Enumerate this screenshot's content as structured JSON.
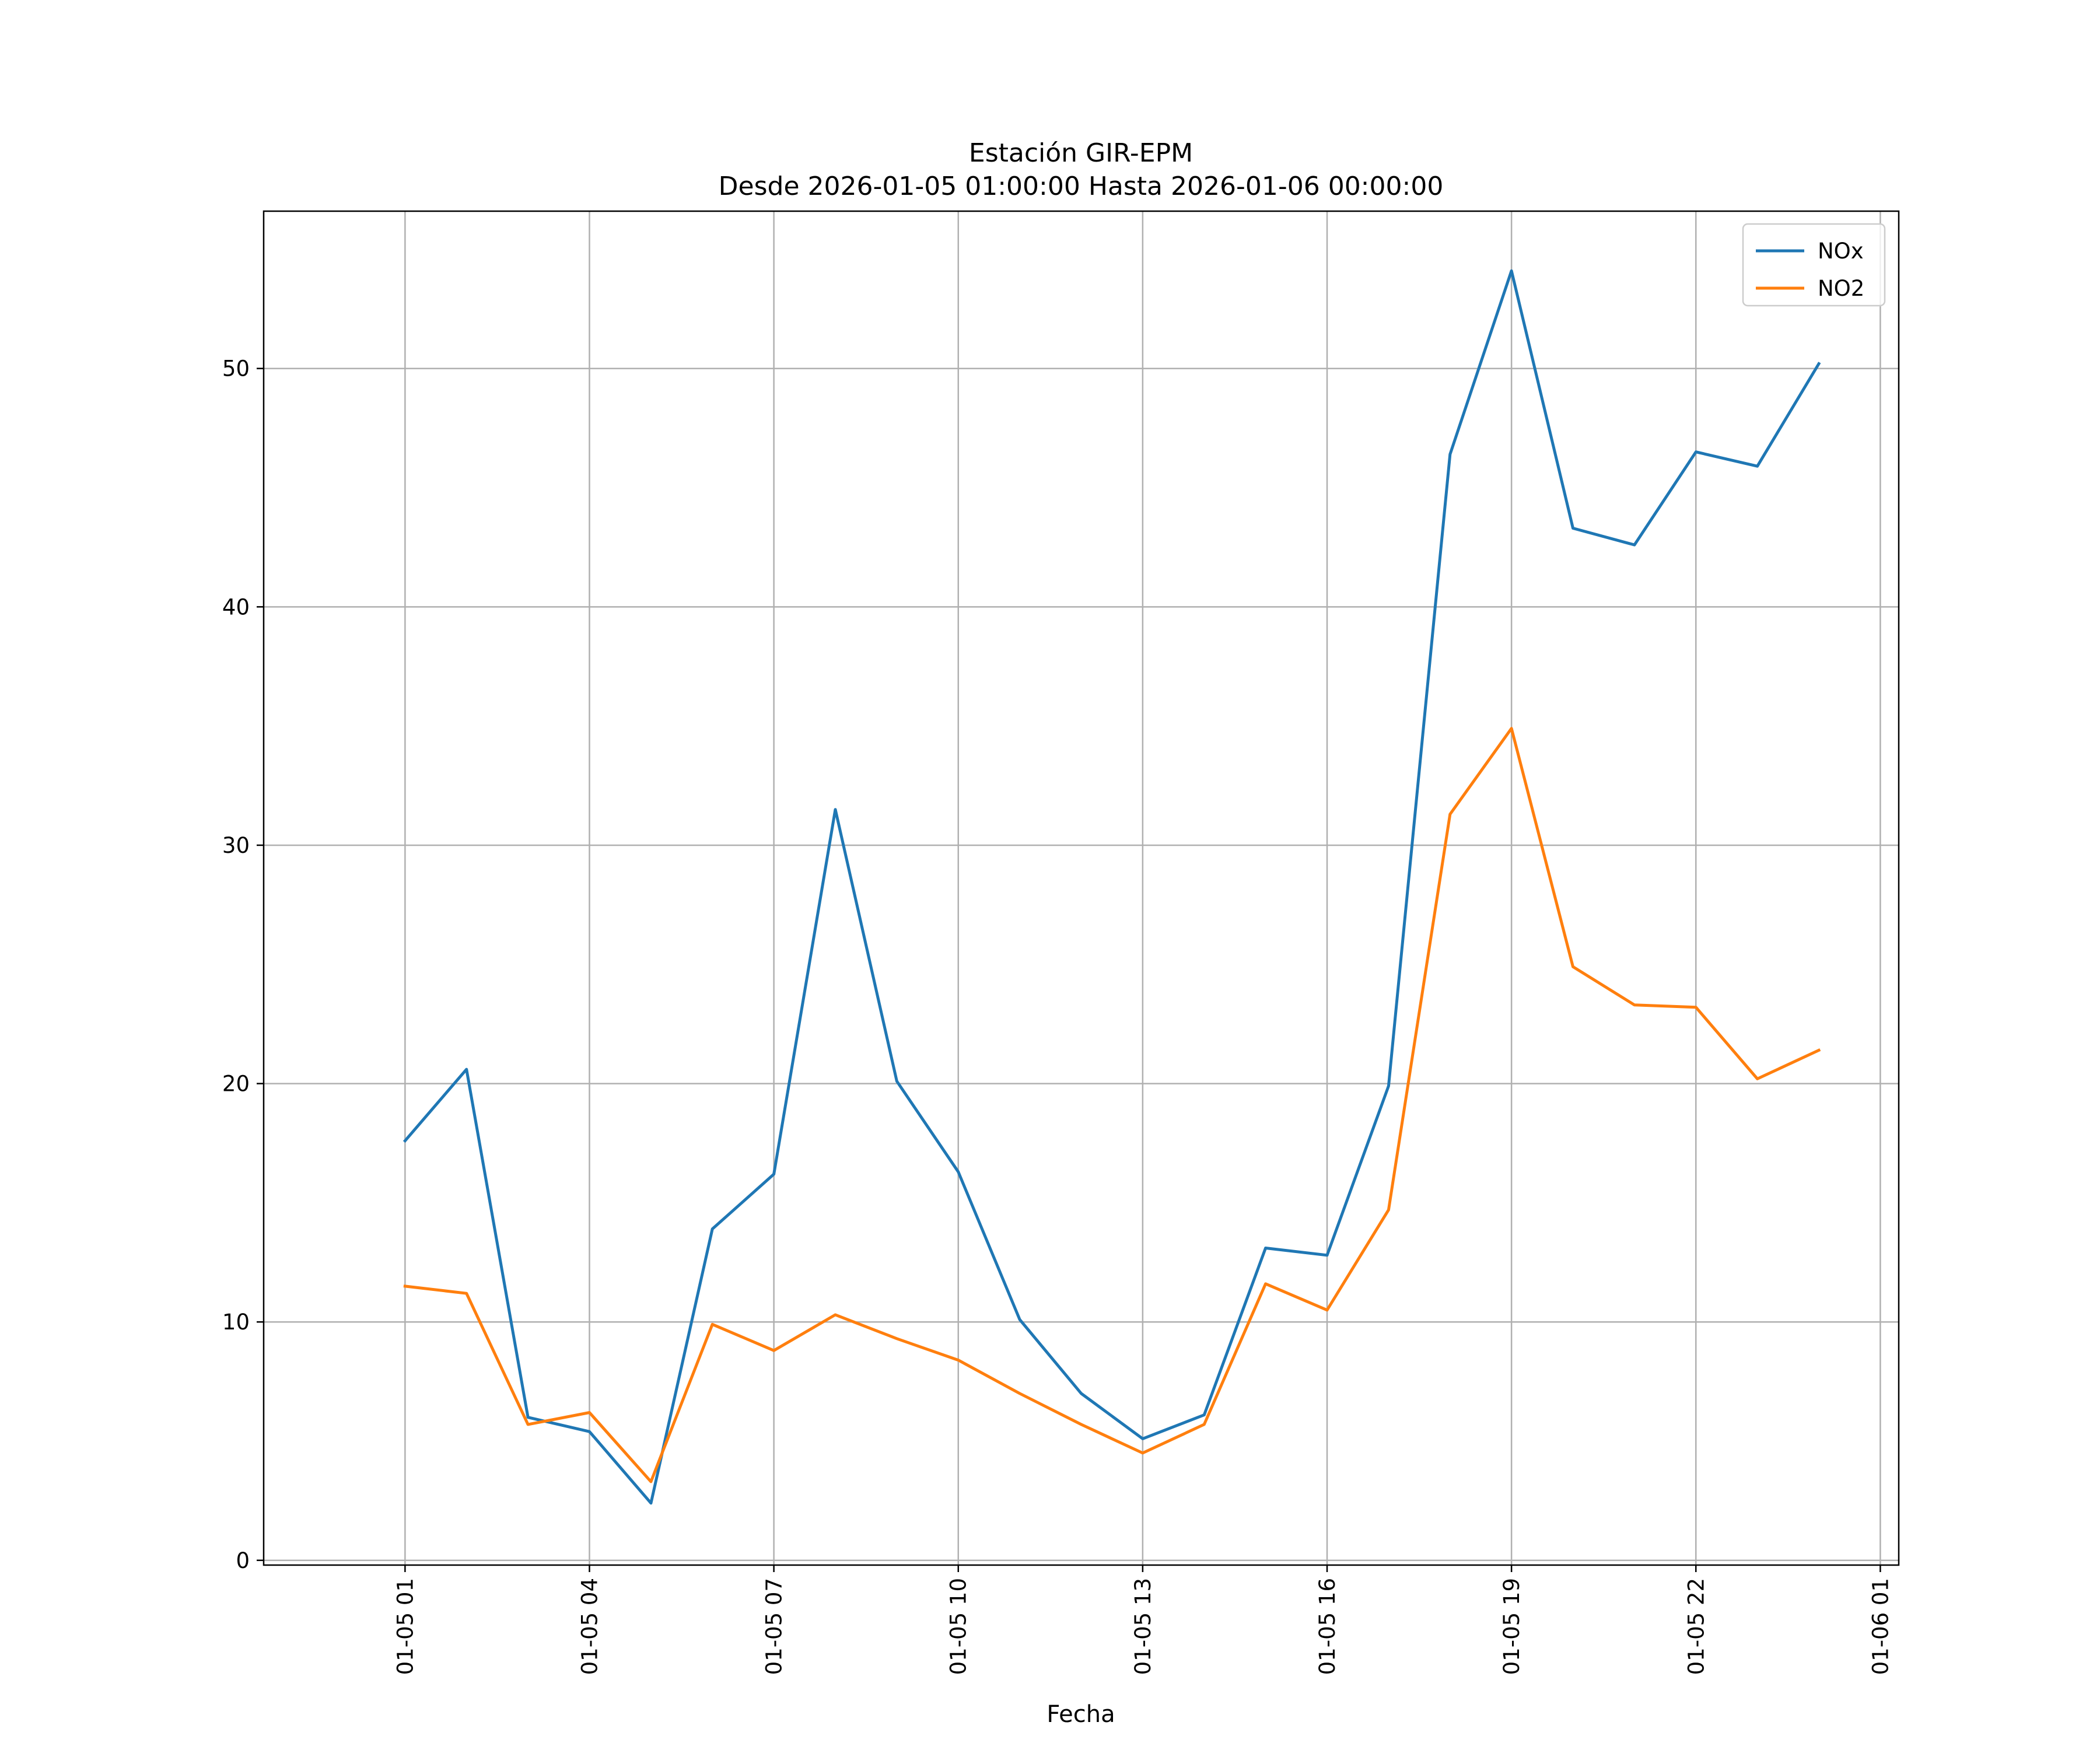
{
  "chart_data": {
    "type": "line",
    "title": "Estación GIR-EPM",
    "subtitle": "Desde 2026-01-05 01:00:00 Hasta 2026-01-06 00:00:00",
    "xlabel": "Fecha",
    "ylabel": "",
    "x": [
      "2026-01-05 01:00",
      "2026-01-05 02:00",
      "2026-01-05 03:00",
      "2026-01-05 04:00",
      "2026-01-05 05:00",
      "2026-01-05 06:00",
      "2026-01-05 07:00",
      "2026-01-05 08:00",
      "2026-01-05 09:00",
      "2026-01-05 10:00",
      "2026-01-05 11:00",
      "2026-01-05 12:00",
      "2026-01-05 13:00",
      "2026-01-05 14:00",
      "2026-01-05 15:00",
      "2026-01-05 16:00",
      "2026-01-05 17:00",
      "2026-01-05 18:00",
      "2026-01-05 19:00",
      "2026-01-05 20:00",
      "2026-01-05 21:00",
      "2026-01-05 22:00",
      "2026-01-05 23:00",
      "2026-01-06 00:00"
    ],
    "series": [
      {
        "name": "NOx",
        "color": "#1f77b4",
        "values": [
          17.6,
          20.6,
          6.0,
          5.4,
          2.4,
          13.9,
          16.2,
          31.5,
          20.1,
          16.3,
          10.1,
          7.0,
          5.1,
          6.1,
          13.1,
          12.8,
          19.9,
          46.4,
          54.1,
          43.3,
          42.6,
          46.5,
          45.9,
          50.2
        ]
      },
      {
        "name": "NO2",
        "color": "#ff7f0e",
        "values": [
          11.5,
          11.2,
          5.7,
          6.2,
          3.3,
          9.9,
          8.8,
          10.3,
          9.3,
          8.4,
          7.0,
          5.7,
          4.5,
          5.7,
          11.6,
          10.5,
          14.7,
          31.3,
          34.9,
          24.9,
          23.3,
          23.2,
          20.2,
          21.4
        ]
      }
    ],
    "x_ticks": [
      "01-05 01",
      "01-05 04",
      "01-05 07",
      "01-05 10",
      "01-05 13",
      "01-05 16",
      "01-05 19",
      "01-05 22",
      "01-06 01"
    ],
    "y_ticks": [
      0,
      10,
      20,
      30,
      40,
      50
    ],
    "xlim": [
      "2026-01-04 22:42",
      "2026-01-06 01:18"
    ],
    "ylim": [
      -0.2,
      56.6
    ],
    "grid": true,
    "legend_position": "top-right"
  }
}
